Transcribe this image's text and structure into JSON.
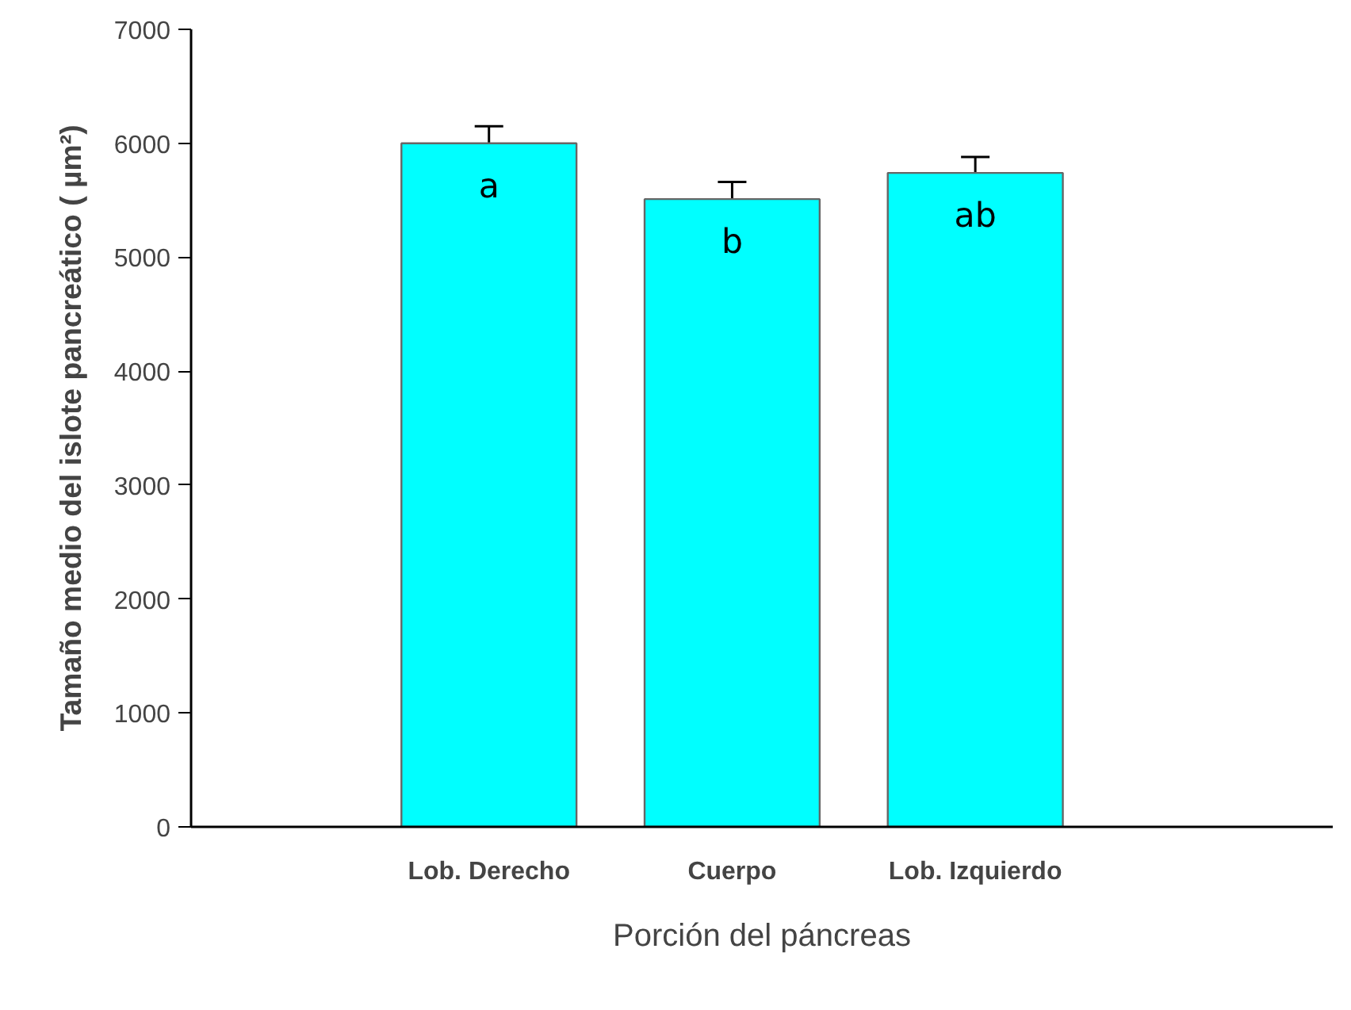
{
  "chart_data": {
    "type": "bar",
    "xlabel": "Porción del páncreas",
    "ylabel": "Tamaño medio del islote pancreático ( µm²)",
    "categories": [
      "Lob. Derecho",
      "Cuerpo",
      "Lob. Izquierdo"
    ],
    "values": [
      6000,
      5510,
      5740
    ],
    "errors": [
      150,
      150,
      140
    ],
    "color": "#00ffff",
    "ylim": [
      0,
      7000
    ],
    "yticks": [
      0,
      1000,
      2000,
      3000,
      4000,
      5000,
      6000,
      7000
    ],
    "annotations": [
      "a",
      "b",
      "ab"
    ]
  }
}
